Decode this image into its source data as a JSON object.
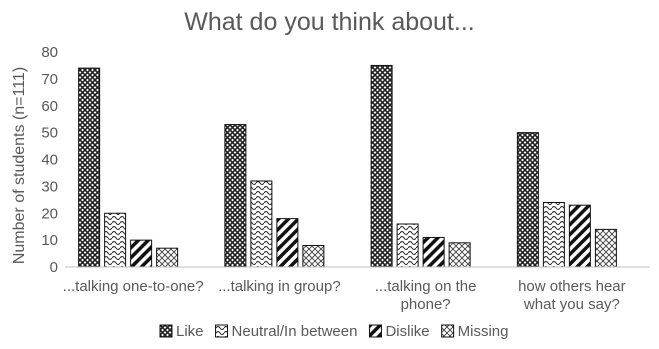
{
  "chart_data": {
    "type": "bar",
    "title": "What do you think about...",
    "xlabel": "",
    "ylabel": "Number of students (n=111)",
    "ylim": [
      0,
      80
    ],
    "yticks": [
      0,
      10,
      20,
      30,
      40,
      50,
      60,
      70,
      80
    ],
    "categories": [
      [
        "...talking one-to-one?"
      ],
      [
        "...talking in group?"
      ],
      [
        "...talking on the",
        "phone?"
      ],
      [
        "how others hear",
        "what you say?"
      ]
    ],
    "series": [
      {
        "name": "Like",
        "values": [
          74,
          53,
          75,
          50
        ],
        "pattern": "crosshatch"
      },
      {
        "name": "Neutral/In between",
        "values": [
          20,
          32,
          16,
          24
        ],
        "pattern": "wave"
      },
      {
        "name": "Dislike",
        "values": [
          10,
          18,
          11,
          23
        ],
        "pattern": "diagonal"
      },
      {
        "name": "Missing",
        "values": [
          7,
          8,
          9,
          14
        ],
        "pattern": "lattice"
      }
    ],
    "grid": false,
    "legend_position": "bottom"
  }
}
